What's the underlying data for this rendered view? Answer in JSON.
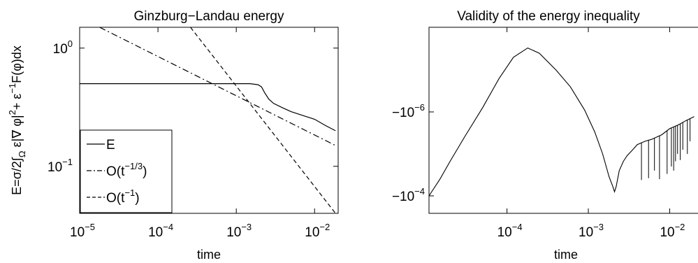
{
  "chart_data": [
    {
      "type": "line",
      "title": "Ginzburg−Landau energy",
      "xlabel": "time",
      "ylabel": "E=σ/2∫Ω ε|∇ φ|2+ ε−1F(φ)dx",
      "ylabel_parts": {
        "a": "E=σ/2∫",
        "sub": "Ω",
        "b": " ε|∇ φ|",
        "sup1": "2",
        "c": "+ ε",
        "sup2": "−1",
        "d": "F(φ)dx"
      },
      "xscale": "log",
      "yscale": "log",
      "xlim": [
        1e-05,
        0.02
      ],
      "ylim": [
        0.04,
        1.5
      ],
      "x_ticks": [
        {
          "value": 1e-05,
          "base": "10",
          "exp": "−5"
        },
        {
          "value": 0.0001,
          "base": "10",
          "exp": "−4"
        },
        {
          "value": 0.001,
          "base": "10",
          "exp": "−3"
        },
        {
          "value": 0.01,
          "base": "10",
          "exp": "−2"
        }
      ],
      "y_ticks": [
        {
          "value": 0.1,
          "base": "10",
          "exp": "−1"
        },
        {
          "value": 1,
          "base": "10",
          "exp": "0"
        }
      ],
      "legend_position": "bottom-left",
      "legend": [
        {
          "style": "solid",
          "text": "E",
          "exp": ""
        },
        {
          "style": "dashdot",
          "text": "O(t",
          "exp": "−1/3",
          "close": ")"
        },
        {
          "style": "dashed",
          "text": "O(t",
          "exp": "−1",
          "close": ")"
        }
      ],
      "series": [
        {
          "style": "solid",
          "x": [
            1e-05,
            0.0005,
            0.001,
            0.0015,
            0.0019,
            0.0021,
            0.0023,
            0.0026,
            0.003,
            0.004,
            0.005,
            0.007,
            0.01,
            0.014,
            0.0185
          ],
          "y": [
            0.5,
            0.5,
            0.5,
            0.5,
            0.49,
            0.47,
            0.42,
            0.37,
            0.34,
            0.31,
            0.29,
            0.27,
            0.25,
            0.22,
            0.2
          ]
        },
        {
          "style": "dashdot",
          "x": [
            1.8e-05,
            0.0185
          ],
          "y": [
            1.5,
            0.15
          ]
        },
        {
          "style": "dashed",
          "x": [
            0.00026,
            0.0185
          ],
          "y": [
            1.5,
            0.04
          ]
        }
      ]
    },
    {
      "type": "line",
      "title": "Validity of the energy inequality",
      "xlabel": "time",
      "ylabel": "",
      "xscale": "log",
      "yscale": "symlog-negative",
      "xlim": [
        1.1e-05,
        0.03
      ],
      "x_ticks": [
        {
          "value": 0.0001,
          "base": "10",
          "exp": "−4"
        },
        {
          "value": 0.001,
          "base": "10",
          "exp": "−3"
        },
        {
          "value": 0.01,
          "base": "10",
          "exp": "−2"
        }
      ],
      "y_ticks": [
        {
          "value": -1e-06,
          "base": "−10",
          "exp": "−6"
        },
        {
          "value": -0.0001,
          "base": "−10",
          "exp": "−4"
        }
      ],
      "series": [
        {
          "style": "solid",
          "x": [
            1.1e-05,
            1.5e-05,
            2e-05,
            3e-05,
            5e-05,
            8e-05,
            0.00012,
            0.00018,
            0.00025,
            0.0004,
            0.0006,
            0.0009,
            0.0012,
            0.0015,
            0.0018,
            0.002,
            0.0021,
            0.0022,
            0.0024,
            0.0027,
            0.003,
            0.0035,
            0.004,
            0.005,
            0.006,
            0.008,
            0.01,
            0.013,
            0.016,
            0.02
          ],
          "y": [
            -0.0001,
            -4e-05,
            -1.5e-05,
            -4e-06,
            -8e-07,
            -1.6e-07,
            -5e-08,
            -3e-08,
            -4e-08,
            -1e-07,
            -2.5e-07,
            -9e-07,
            -3e-06,
            -1e-05,
            -3.5e-05,
            -6e-05,
            -8e-05,
            -6e-05,
            -2.5e-05,
            -1.5e-05,
            -1.1e-05,
            -8e-06,
            -6e-06,
            -5e-06,
            -4.5e-06,
            -3.5e-06,
            -2.5e-06,
            -2e-06,
            -1.6e-06,
            -1.3e-06
          ]
        },
        {
          "style": "spikes",
          "x": [
            0.0045,
            0.0055,
            0.0065,
            0.0075,
            0.0093,
            0.0105,
            0.0112,
            0.0118,
            0.0125,
            0.0135,
            0.0145,
            0.0165,
            0.0178
          ],
          "y": [
            -4.2e-05,
            -3.8e-05,
            -2.5e-05,
            -4e-05,
            -3e-05,
            -2e-05,
            -2.5e-05,
            -1.5e-05,
            -1e-05,
            -1.4e-05,
            -8e-06,
            -1e-05,
            -5e-06
          ]
        }
      ]
    }
  ]
}
